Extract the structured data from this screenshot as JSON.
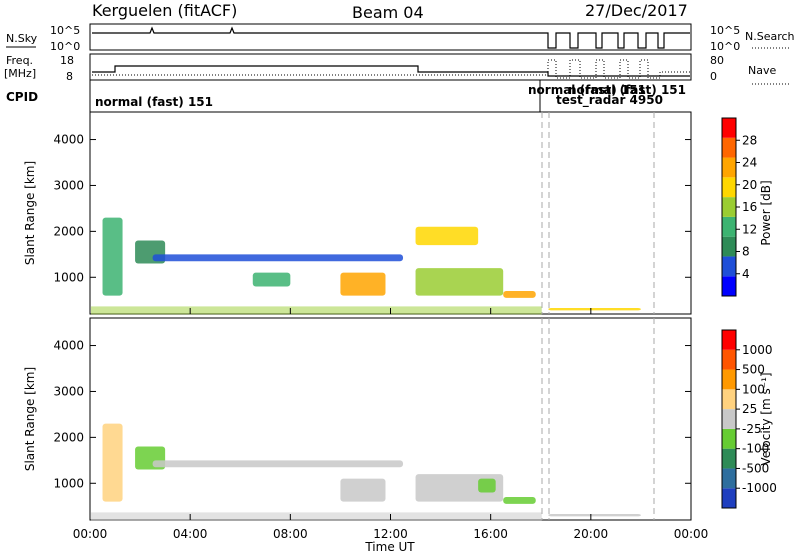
{
  "header": {
    "station": "Kerguelen (fitACF)",
    "beam": "Beam 04",
    "date": "27/Dec/2017"
  },
  "strip_panels": {
    "nsky_label": "N.Sky",
    "nsky_ticks": [
      "10^5",
      "10^0"
    ],
    "nsearch_label": "N.Search",
    "nsearch_ticks": [
      "10^5",
      "10^0"
    ],
    "freq_label_1": "Freq.",
    "freq_label_2": "[MHz]",
    "freq_ticks": [
      "18",
      "8"
    ],
    "nave_label": "Nave",
    "nave_ticks": [
      "80",
      "0"
    ],
    "cpid_label": "CPID",
    "cpid_entries": [
      "normal (fast) 151",
      "normal (fast) 151",
      "normal (fast) 151",
      "test_radar 4950"
    ]
  },
  "x_axis": {
    "label": "Time UT",
    "ticks": [
      "00:00",
      "04:00",
      "08:00",
      "12:00",
      "16:00",
      "20:00",
      "00:00"
    ]
  },
  "power_panel": {
    "ylabel": "Slant Range [km]",
    "yticks": [
      "4000",
      "3000",
      "2000",
      "1000"
    ],
    "colorbar_label": "Power [dB]",
    "colorbar_ticks": [
      "28",
      "24",
      "20",
      "16",
      "12",
      "8",
      "4"
    ],
    "colors": [
      "#0000ff",
      "#1f4fd8",
      "#2e8b57",
      "#3cb371",
      "#9acd32",
      "#ffd700",
      "#ffa500",
      "#ff6600",
      "#ff0000"
    ]
  },
  "velocity_panel": {
    "ylabel": "Slant Range [km]",
    "yticks": [
      "4000",
      "3000",
      "2000",
      "1000"
    ],
    "colorbar_label": "Velocity [m s⁻¹]",
    "colorbar_ticks": [
      "1000",
      "500",
      "100",
      "25",
      "-25",
      "-100",
      "-500",
      "-1000"
    ],
    "colors": [
      "#1f3fbf",
      "#2e6e9e",
      "#2e8b57",
      "#66cc33",
      "#c8c8c8",
      "#ffd27f",
      "#ff9900",
      "#ff5500",
      "#ff0000"
    ]
  },
  "chart_data": [
    {
      "type": "heatmap",
      "title": "Power",
      "xlabel": "Time UT",
      "ylabel": "Slant Range [km]",
      "xlim": [
        0,
        24
      ],
      "ylim": [
        200,
        4600
      ],
      "colorbar": {
        "label": "Power [dB]",
        "range": [
          0,
          32
        ]
      },
      "features": [
        {
          "t0": 0.5,
          "t1": 1.3,
          "r0": 600,
          "r1": 2300,
          "value": 14
        },
        {
          "t0": 1.8,
          "t1": 3.0,
          "r0": 1300,
          "r1": 1800,
          "value": 10
        },
        {
          "t0": 2.5,
          "t1": 12.5,
          "r0": 1350,
          "r1": 1500,
          "value": 6
        },
        {
          "t0": 6.5,
          "t1": 8.0,
          "r0": 800,
          "r1": 1100,
          "value": 14
        },
        {
          "t0": 10.0,
          "t1": 11.8,
          "r0": 600,
          "r1": 1100,
          "value": 24
        },
        {
          "t0": 13.0,
          "t1": 16.5,
          "r0": 600,
          "r1": 1200,
          "value": 16
        },
        {
          "t0": 13.0,
          "t1": 15.5,
          "r0": 1700,
          "r1": 2100,
          "value": 18
        },
        {
          "t0": 16.5,
          "t1": 17.8,
          "r0": 550,
          "r1": 700,
          "value": 22
        },
        {
          "t0": 18.3,
          "t1": 22.0,
          "r0": 280,
          "r1": 330,
          "value": 18
        }
      ]
    },
    {
      "type": "heatmap",
      "title": "Velocity",
      "xlabel": "Time UT",
      "ylabel": "Slant Range [km]",
      "xlim": [
        0,
        24
      ],
      "ylim": [
        200,
        4600
      ],
      "colorbar": {
        "label": "Velocity [m s⁻¹]",
        "range": [
          -1000,
          1000
        ]
      },
      "features": [
        {
          "t0": 0.5,
          "t1": 1.3,
          "r0": 600,
          "r1": 2300,
          "value": 120
        },
        {
          "t0": 1.8,
          "t1": 3.0,
          "r0": 1300,
          "r1": 1800,
          "value": -150
        },
        {
          "t0": 2.5,
          "t1": 12.5,
          "r0": 1350,
          "r1": 1500,
          "value": 0
        },
        {
          "t0": 10.0,
          "t1": 11.8,
          "r0": 600,
          "r1": 1100,
          "value": 0
        },
        {
          "t0": 13.0,
          "t1": 16.5,
          "r0": 600,
          "r1": 1200,
          "value": 0
        },
        {
          "t0": 15.5,
          "t1": 16.2,
          "r0": 800,
          "r1": 1100,
          "value": -300
        },
        {
          "t0": 16.5,
          "t1": 17.8,
          "r0": 550,
          "r1": 700,
          "value": -200
        },
        {
          "t0": 18.3,
          "t1": 22.0,
          "r0": 280,
          "r1": 330,
          "value": 0
        }
      ]
    }
  ]
}
